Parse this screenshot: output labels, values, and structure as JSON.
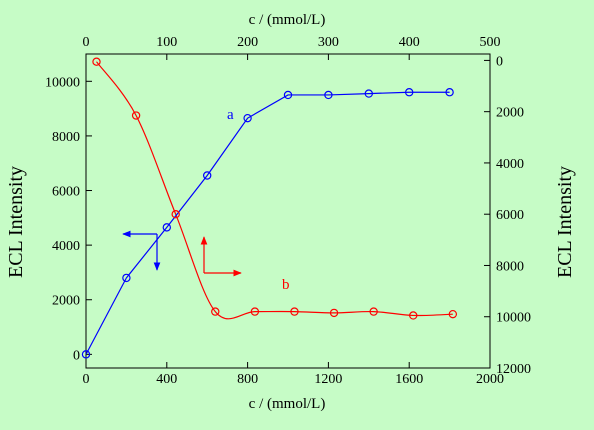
{
  "chart_data": {
    "type": "line",
    "title": "",
    "axes": {
      "bottom": {
        "label": "c / (mmol/L)",
        "range": [
          0,
          2000
        ],
        "ticks": [
          0,
          400,
          800,
          1200,
          1600,
          2000
        ],
        "tick_labels": [
          "0",
          "400",
          "800",
          "1200",
          "1600",
          "2000"
        ]
      },
      "top": {
        "label": "c / (mmol/L)",
        "range": [
          0,
          500
        ],
        "ticks": [
          0,
          100,
          200,
          300,
          400,
          500
        ],
        "tick_labels": [
          "0",
          "100",
          "200",
          "300",
          "400",
          "500"
        ]
      },
      "left": {
        "label": "ECL Intensity",
        "range": [
          -500,
          11000
        ],
        "ticks": [
          0,
          2000,
          4000,
          6000,
          8000,
          10000
        ],
        "tick_labels": [
          "0",
          "2000",
          "4000",
          "6000",
          "8000",
          "10000"
        ]
      },
      "right": {
        "label": "ECL Intensity",
        "range": [
          -250,
          12000
        ],
        "inverted": true,
        "ticks": [
          0,
          2000,
          4000,
          6000,
          8000,
          10000,
          12000
        ],
        "tick_labels": [
          "0",
          "2000",
          "4000",
          "6000",
          "8000",
          "10000",
          "12000"
        ]
      }
    },
    "grid": false,
    "series": [
      {
        "name": "a",
        "color": "#0000ff",
        "x_axis": "bottom",
        "y_axis": "left",
        "style": "straight line with open circles",
        "x": [
          0,
          200,
          400,
          600,
          800,
          1000,
          1200,
          1400,
          1600,
          1800
        ],
        "y": [
          0,
          2800,
          4650,
          6550,
          8650,
          9500,
          9500,
          9550,
          9600,
          9600
        ]
      },
      {
        "name": "b",
        "color": "#ff0000",
        "x_axis": "top",
        "y_axis": "right",
        "style": "smooth curve with open circles",
        "x": [
          13,
          62,
          111,
          160,
          209,
          258,
          307,
          356,
          405,
          454
        ],
        "y": [
          50,
          2150,
          6000,
          9800,
          9800,
          9800,
          9850,
          9800,
          9950,
          9900
        ]
      }
    ],
    "annotations": [
      {
        "text": "a",
        "color": "#0000ff",
        "series": "a"
      },
      {
        "text": "b",
        "color": "#ff0000",
        "series": "b"
      },
      {
        "type": "axis-pointer",
        "color": "#0000ff",
        "directions": [
          "left",
          "down"
        ],
        "meaning": "series a uses left and bottom axes"
      },
      {
        "type": "axis-pointer",
        "color": "#ff0000",
        "directions": [
          "up",
          "right"
        ],
        "meaning": "series b uses top and right axes"
      }
    ]
  }
}
